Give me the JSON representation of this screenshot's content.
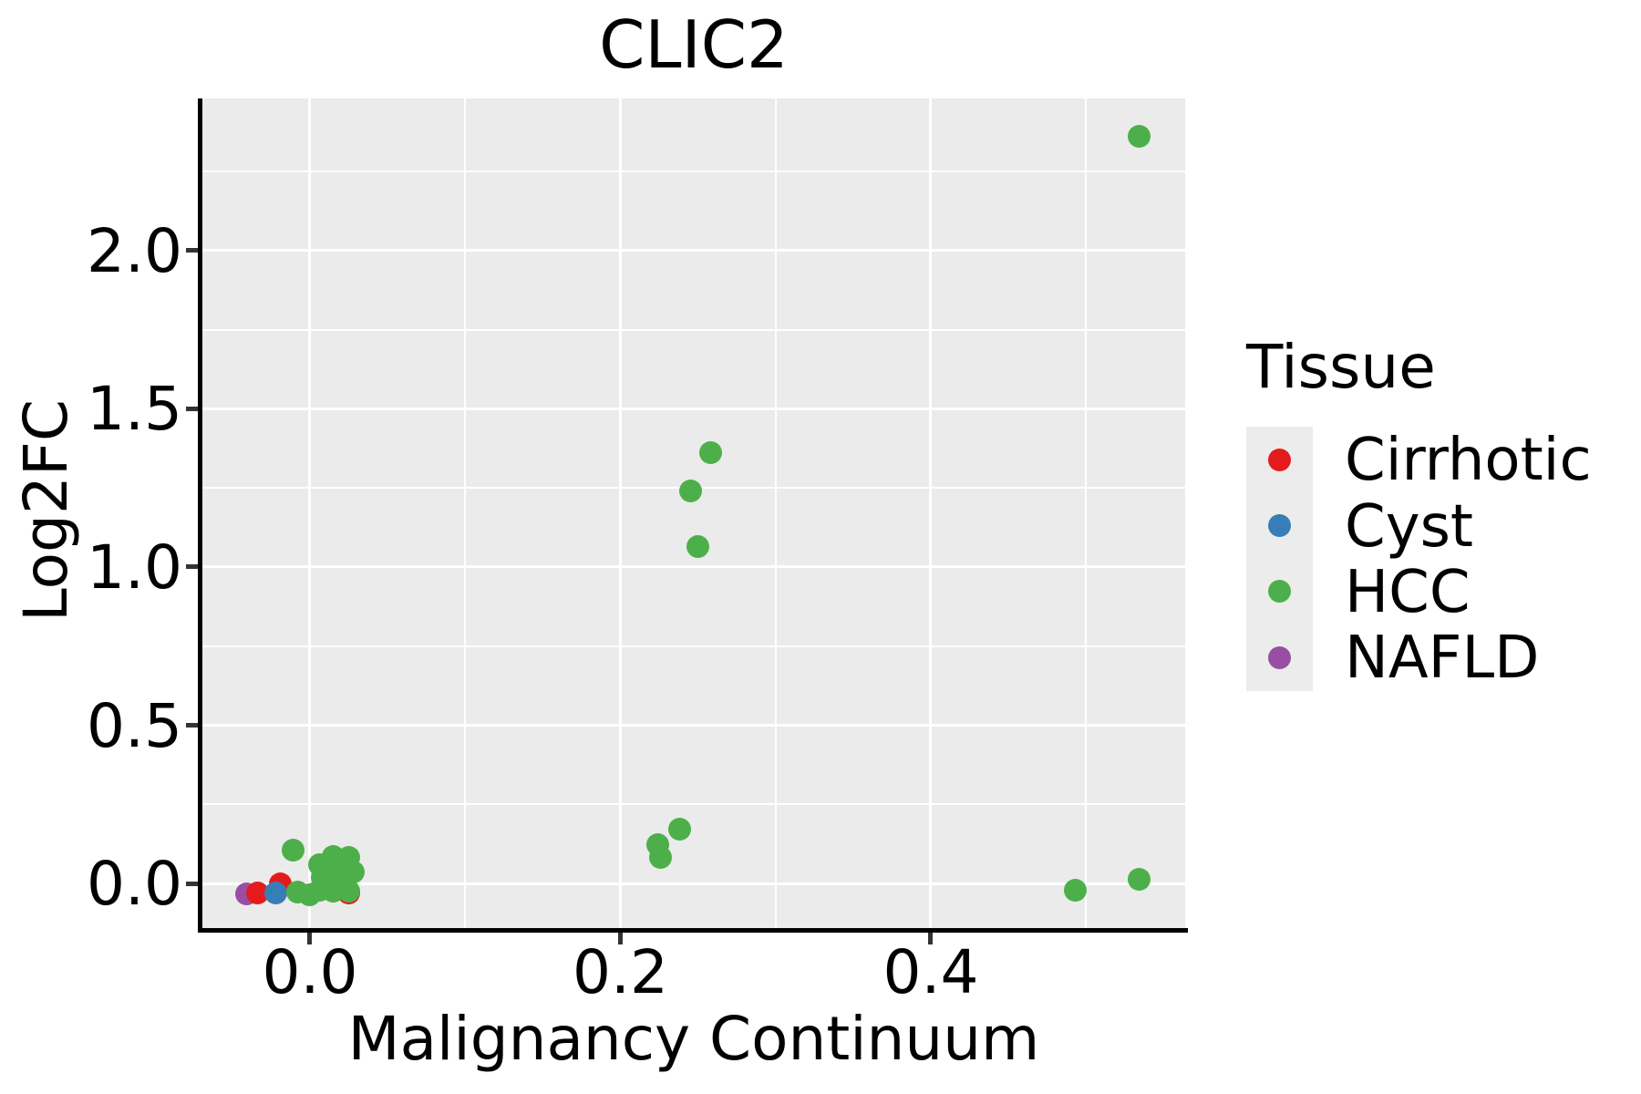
{
  "chart_data": {
    "type": "scatter",
    "title": "CLIC2",
    "xlabel": "Malignancy Continuum",
    "ylabel": "Log2FC",
    "xlim": [
      -0.0693,
      0.5639
    ],
    "ylim": [
      -0.1496,
      2.4806
    ],
    "grid": true,
    "legend_position": "right",
    "x_axis": {
      "major_ticks": [
        0.0,
        0.2,
        0.4
      ],
      "tick_labels": [
        "0.0",
        "0.2",
        "0.4"
      ],
      "minor_ticks": [
        0.1,
        0.3,
        0.5
      ]
    },
    "y_axis": {
      "major_ticks": [
        0.0,
        0.5,
        1.0,
        1.5,
        2.0
      ],
      "tick_labels": [
        "0.0",
        "0.5",
        "1.0",
        "1.5",
        "2.0"
      ],
      "minor_ticks": [
        0.25,
        0.75,
        1.25,
        1.75,
        2.25
      ]
    },
    "series": [
      {
        "name": "Cirrhotic",
        "color": "#E41A1C",
        "points": [
          [
            -0.034,
            -0.029
          ],
          [
            -0.019,
            0.0
          ],
          [
            0.025,
            -0.029
          ]
        ]
      },
      {
        "name": "Cyst",
        "color": "#377EB8",
        "points": [
          [
            -0.022,
            -0.029
          ]
        ]
      },
      {
        "name": "HCC",
        "color": "#4DAF4A",
        "points": [
          [
            0.534,
            2.36
          ],
          [
            0.258,
            1.361
          ],
          [
            0.245,
            1.24
          ],
          [
            0.25,
            1.065
          ],
          [
            0.238,
            0.173
          ],
          [
            0.224,
            0.124
          ],
          [
            0.226,
            0.081
          ],
          [
            0.493,
            -0.02
          ],
          [
            0.534,
            0.012
          ],
          [
            -0.011,
            0.104
          ],
          [
            -0.008,
            -0.026
          ],
          [
            0.006,
            0.058
          ],
          [
            0.015,
            0.086
          ],
          [
            0.025,
            0.081
          ],
          [
            0.008,
            0.02
          ],
          [
            0.018,
            0.037
          ],
          [
            0.028,
            0.035
          ],
          [
            0.006,
            -0.02
          ],
          [
            0.015,
            -0.023
          ],
          [
            0.025,
            -0.023
          ],
          [
            0.0,
            -0.035
          ],
          [
            0.02,
            0.06
          ],
          [
            0.012,
            0.005
          ]
        ]
      },
      {
        "name": "NAFLD",
        "color": "#984EA3",
        "points": [
          [
            -0.041,
            -0.032
          ]
        ]
      }
    ],
    "draw_order": [
      "NAFLD",
      "Cirrhotic",
      "Cyst",
      "HCC"
    ]
  },
  "legend": {
    "title": "Tissue"
  }
}
